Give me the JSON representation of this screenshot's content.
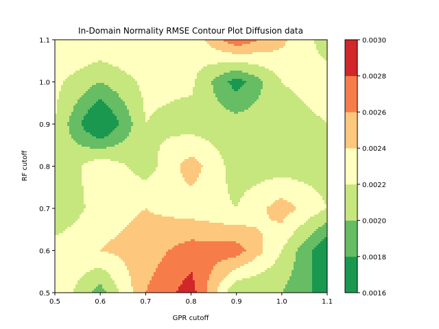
{
  "chart_data": {
    "type": "contour",
    "title": "In-Domain Normality RMSE Contour Plot Diffusion data",
    "xlabel": "GPR cutoff",
    "ylabel": "RF cutoff",
    "xlim": [
      0.5,
      1.1
    ],
    "ylim": [
      0.5,
      1.1
    ],
    "x_ticks": [
      "0.5",
      "0.6",
      "0.7",
      "0.8",
      "0.9",
      "1.0",
      "1.1"
    ],
    "y_ticks": [
      "0.5",
      "0.6",
      "0.7",
      "0.8",
      "0.9",
      "1.0",
      "1.1"
    ],
    "colorbar": {
      "ticks": [
        "0.0016",
        "0.0018",
        "0.0020",
        "0.0022",
        "0.0024",
        "0.0026",
        "0.0028",
        "0.0030"
      ],
      "levels": [
        0.0016,
        0.0018,
        0.002,
        0.0022,
        0.0024,
        0.0026,
        0.0028,
        0.003
      ],
      "colors": [
        "#1a9850",
        "#66bd63",
        "#c6e67e",
        "#ffffbf",
        "#fdc77d",
        "#f67d4a",
        "#d1262a"
      ]
    },
    "x": [
      0.5,
      0.6,
      0.7,
      0.8,
      0.9,
      1.0,
      1.1
    ],
    "y": [
      0.5,
      0.6,
      0.7,
      0.8,
      0.9,
      1.0,
      1.1
    ],
    "z": [
      [
        0.0024,
        0.0019,
        0.0026,
        0.0029,
        0.002,
        0.002,
        0.0017
      ],
      [
        0.0023,
        0.0024,
        0.0025,
        0.0027,
        0.0027,
        0.0022,
        0.0016
      ],
      [
        0.002,
        0.0023,
        0.0024,
        0.0023,
        0.0022,
        0.0025,
        0.0022
      ],
      [
        0.002,
        0.00235,
        0.0021,
        0.0025,
        0.0021,
        0.0021,
        0.0021
      ],
      [
        0.0022,
        0.0015,
        0.0022,
        0.0021,
        0.0021,
        0.0021,
        0.0022
      ],
      [
        0.00225,
        0.002,
        0.00225,
        0.00225,
        0.0017,
        0.0022,
        0.0023
      ],
      [
        0.0024,
        0.0024,
        0.0024,
        0.00225,
        0.00275,
        0.00245,
        0.0021
      ]
    ]
  }
}
